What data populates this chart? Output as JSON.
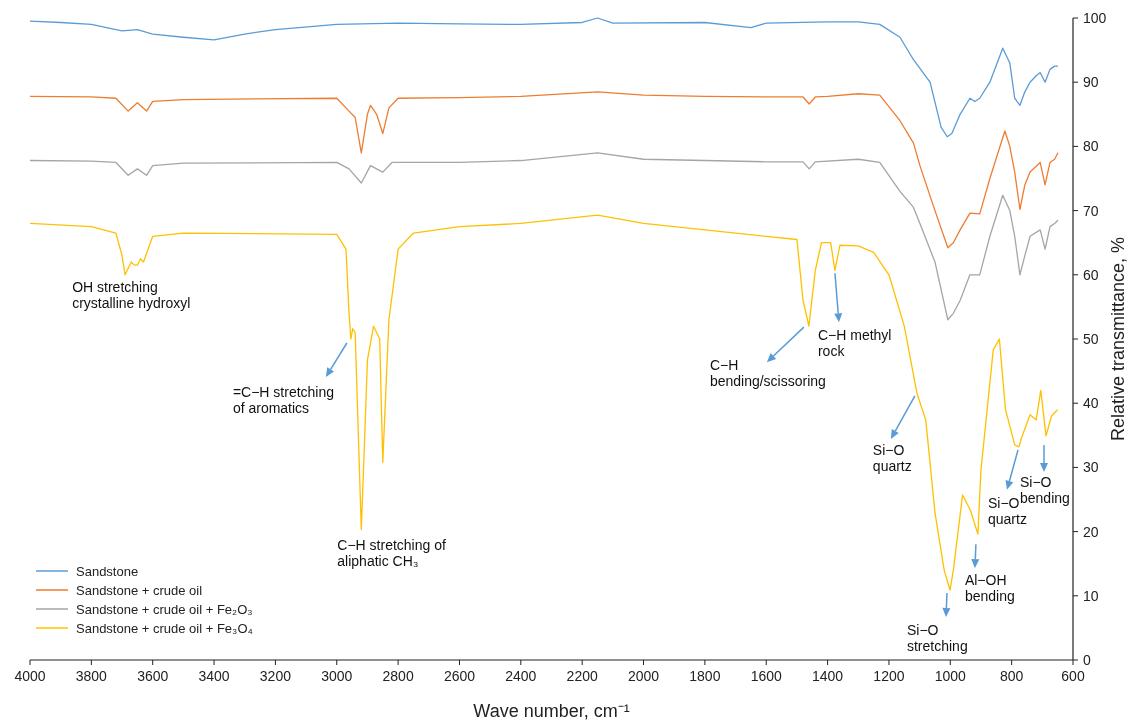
{
  "chart_data": {
    "type": "line",
    "xlabel": "Wave number, cm⁻¹",
    "ylabel": "Relative transmittance, %",
    "xlim": [
      4000,
      600
    ],
    "xticks": [
      4000,
      3800,
      3600,
      3400,
      3200,
      3000,
      2800,
      2600,
      2400,
      2200,
      2000,
      1800,
      1600,
      1400,
      1200,
      1000,
      800,
      600
    ],
    "ylim": [
      0,
      100
    ],
    "yticks": [
      0,
      10,
      20,
      30,
      40,
      50,
      60,
      70,
      80,
      90,
      100
    ],
    "legend": "bottom left",
    "series": [
      {
        "name": "Sandstone",
        "color": "#5b9bd5",
        "x": [
          4000,
          3900,
          3800,
          3750,
          3700,
          3650,
          3600,
          3500,
          3400,
          3300,
          3200,
          3000,
          2800,
          2600,
          2400,
          2200,
          2150,
          2100,
          1800,
          1650,
          1600,
          1400,
          1300,
          1230,
          1164,
          1120,
          1066,
          1030,
          1010,
          995,
          968,
          936,
          920,
          904,
          871,
          829,
          806,
          790,
          773,
          757,
          740,
          720,
          707,
          691,
          675,
          660,
          649
        ],
        "values": [
          99.5,
          99.3,
          99,
          98.5,
          98,
          98.2,
          97.5,
          97,
          96.6,
          97.5,
          98.2,
          99,
          99.2,
          99.1,
          99,
          99.3,
          100,
          99.2,
          99.3,
          98.5,
          99.2,
          99.4,
          99.4,
          99,
          97,
          93.5,
          90,
          83,
          81.5,
          82,
          85,
          87.5,
          87,
          87.5,
          90,
          95.3,
          93,
          87.5,
          86.4,
          88.5,
          90,
          91,
          91.5,
          90,
          92,
          92.5,
          92.5
        ]
      },
      {
        "name": "Sandstone + crude oil",
        "color": "#ed7d31",
        "x": [
          4000,
          3800,
          3720,
          3680,
          3650,
          3620,
          3600,
          3500,
          3000,
          2960,
          2940,
          2920,
          2900,
          2890,
          2870,
          2850,
          2830,
          2800,
          2600,
          2400,
          2150,
          2000,
          1800,
          1600,
          1480,
          1460,
          1440,
          1400,
          1300,
          1230,
          1164,
          1120,
          1099,
          1050,
          1008,
          990,
          968,
          936,
          904,
          871,
          822,
          806,
          790,
          773,
          757,
          740,
          707,
          691,
          675,
          660,
          649
        ],
        "values": [
          87.8,
          87.7,
          87.5,
          85.5,
          86.8,
          85.5,
          87,
          87.3,
          87.5,
          85.5,
          84.5,
          79,
          85,
          86.4,
          85,
          82,
          86,
          87.5,
          87.6,
          87.8,
          88.5,
          88,
          87.8,
          87.7,
          87.7,
          86.6,
          87.7,
          87.8,
          88.2,
          88,
          84,
          80.5,
          77,
          70,
          64.2,
          65,
          67,
          69.6,
          69.5,
          75,
          82.4,
          80,
          76,
          70.2,
          74,
          76,
          77.5,
          74,
          77.5,
          78,
          79
        ]
      },
      {
        "name": "Sandstone + crude oil + Fe₂O₃",
        "color": "#a5a5a5",
        "x": [
          4000,
          3800,
          3720,
          3680,
          3650,
          3620,
          3600,
          3500,
          3000,
          2960,
          2920,
          2890,
          2850,
          2820,
          2600,
          2400,
          2150,
          2000,
          1800,
          1600,
          1480,
          1460,
          1440,
          1300,
          1230,
          1164,
          1120,
          1099,
          1050,
          1008,
          990,
          968,
          936,
          904,
          871,
          829,
          806,
          790,
          773,
          757,
          740,
          707,
          691,
          675,
          660,
          649
        ],
        "values": [
          77.8,
          77.7,
          77.5,
          75.5,
          76.5,
          75.5,
          77,
          77.4,
          77.5,
          76.5,
          74.3,
          77,
          76,
          77.5,
          77.5,
          77.8,
          79,
          78,
          77.8,
          77.6,
          77.6,
          76.5,
          77.6,
          78,
          77.5,
          73,
          70.5,
          68,
          62,
          53,
          54,
          56,
          60,
          60,
          66,
          72.4,
          70,
          66,
          60,
          63,
          66,
          67,
          64,
          67.5,
          68,
          68.5
        ]
      },
      {
        "name": "Sandstone + crude oil + Fe₃O₄",
        "color": "#ffc000",
        "x": [
          4000,
          3800,
          3720,
          3700,
          3690,
          3670,
          3660,
          3650,
          3640,
          3630,
          3600,
          3500,
          3000,
          2970,
          2960,
          2954,
          2948,
          2940,
          2920,
          2900,
          2880,
          2860,
          2850,
          2830,
          2800,
          2750,
          2600,
          2400,
          2150,
          2000,
          1800,
          1600,
          1500,
          1480,
          1461,
          1440,
          1420,
          1390,
          1376,
          1360,
          1300,
          1250,
          1200,
          1150,
          1109,
          1080,
          1050,
          1020,
          1001,
          990,
          960,
          935,
          910,
          900,
          860,
          840,
          820,
          790,
          776,
          770,
          740,
          720,
          705,
          688,
          670,
          650
        ],
        "values": [
          68,
          67.5,
          66.5,
          63,
          60,
          62,
          61.5,
          61.5,
          62.5,
          62,
          66,
          66.5,
          66.3,
          64,
          54,
          50,
          51.6,
          51,
          20.3,
          46.7,
          52,
          50,
          30.8,
          53,
          64,
          66.5,
          67.5,
          68,
          69.3,
          68,
          67,
          66,
          65.5,
          56,
          52,
          60.7,
          65,
          65,
          60.7,
          64.6,
          64.5,
          63.5,
          60,
          52,
          41.6,
          37.4,
          23,
          14,
          10.9,
          14,
          25.7,
          23.4,
          19.6,
          29.6,
          48.3,
          50,
          39,
          33.5,
          33.2,
          34.3,
          38.2,
          37.4,
          42,
          34.9,
          38,
          39
        ]
      }
    ],
    "annotations": [
      {
        "text": "OH stretching\ncrystalline hydroxyl",
        "x": 3680,
        "y": 60
      },
      {
        "text": "=C−H stretching\nof aromatics",
        "x": 2954,
        "y": 50
      },
      {
        "text": "C−H stretching of\naliphatic CH₃",
        "x": 2920,
        "y": 20.3
      },
      {
        "text": "C−H\nbending/scissoring",
        "x": 1461,
        "y": 52
      },
      {
        "text": "C−H methyl\nrock",
        "x": 1376,
        "y": 60.7
      },
      {
        "text": "Si−O\nquartz",
        "x": 1109,
        "y": 41.6
      },
      {
        "text": "Si−O\nquartz",
        "x": 776,
        "y": 33.2
      },
      {
        "text": "Si−O\nbending",
        "x": 688,
        "y": 34.9
      },
      {
        "text": "Al−OH\nbending",
        "x": 910,
        "y": 19.6
      },
      {
        "text": "Si−O\nstretching",
        "x": 1001,
        "y": 10.9
      }
    ]
  }
}
